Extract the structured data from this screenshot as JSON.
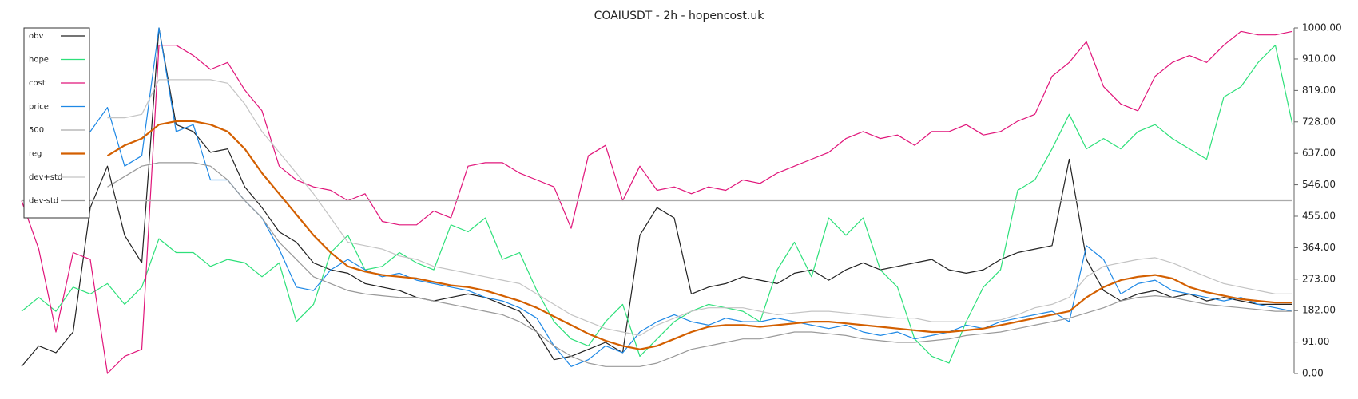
{
  "chart_data": {
    "type": "line",
    "title": "COAIUSDT - 2h - hopencost.uk",
    "legend": "upper left",
    "y_axis_side": "right",
    "ylim": [
      0,
      1000
    ],
    "yticks": [
      {
        "value": 0,
        "label": "0.00"
      },
      {
        "value": 91,
        "label": "91.00"
      },
      {
        "value": 182,
        "label": "182.00"
      },
      {
        "value": 273,
        "label": "273.00"
      },
      {
        "value": 364,
        "label": "364.00"
      },
      {
        "value": 455,
        "label": "455.00"
      },
      {
        "value": 546,
        "label": "546.00"
      },
      {
        "value": 637,
        "label": "637.00"
      },
      {
        "value": 728,
        "label": "728.00"
      },
      {
        "value": 819,
        "label": "819.00"
      },
      {
        "value": 910,
        "label": "910.00"
      },
      {
        "value": 1000,
        "label": "1000.00"
      }
    ],
    "series": [
      {
        "name": "obv",
        "color": "#222222",
        "width": 1.2,
        "values": [
          20,
          80,
          60,
          120,
          480,
          600,
          400,
          320,
          1000,
          720,
          700,
          640,
          650,
          540,
          480,
          410,
          380,
          320,
          300,
          290,
          260,
          250,
          240,
          220,
          210,
          220,
          230,
          220,
          200,
          180,
          120,
          40,
          50,
          70,
          90,
          60,
          400,
          480,
          450,
          230,
          250,
          260,
          280,
          270,
          260,
          290,
          300,
          270,
          300,
          320,
          300,
          310,
          320,
          330,
          300,
          290,
          300,
          330,
          350,
          360,
          370,
          620,
          330,
          240,
          210,
          230,
          240,
          220,
          230,
          210,
          220,
          210,
          200,
          200,
          200
        ]
      },
      {
        "name": "hope",
        "color": "#2ee07a",
        "width": 1.2,
        "values": [
          180,
          220,
          180,
          250,
          230,
          260,
          200,
          250,
          390,
          350,
          350,
          310,
          330,
          320,
          280,
          320,
          150,
          200,
          350,
          400,
          300,
          310,
          350,
          320,
          300,
          430,
          410,
          450,
          330,
          350,
          240,
          150,
          100,
          80,
          150,
          200,
          50,
          100,
          150,
          180,
          200,
          190,
          180,
          150,
          300,
          380,
          280,
          450,
          400,
          450,
          300,
          250,
          100,
          50,
          30,
          150,
          250,
          300,
          530,
          560,
          650,
          750,
          650,
          680,
          650,
          700,
          720,
          680,
          650,
          620,
          800,
          830,
          900,
          950,
          720
        ]
      },
      {
        "name": "cost",
        "color": "#e0157a",
        "width": 1.2,
        "values": [
          500,
          360,
          120,
          350,
          330,
          0,
          50,
          70,
          950,
          950,
          920,
          880,
          900,
          820,
          760,
          600,
          560,
          540,
          530,
          500,
          520,
          440,
          430,
          430,
          470,
          450,
          600,
          610,
          610,
          580,
          560,
          540,
          420,
          630,
          660,
          500,
          600,
          530,
          540,
          520,
          540,
          530,
          560,
          550,
          580,
          600,
          620,
          640,
          680,
          700,
          680,
          690,
          660,
          700,
          700,
          720,
          690,
          700,
          730,
          750,
          860,
          900,
          960,
          830,
          780,
          760,
          860,
          900,
          920,
          900,
          950,
          990,
          980,
          980,
          990
        ]
      },
      {
        "name": "price",
        "color": "#1e88e5",
        "width": 1.2,
        "values": [
          null,
          null,
          null,
          null,
          700,
          770,
          600,
          630,
          1000,
          700,
          720,
          560,
          560,
          500,
          450,
          360,
          250,
          240,
          300,
          330,
          300,
          280,
          290,
          270,
          260,
          250,
          240,
          220,
          210,
          190,
          160,
          80,
          20,
          40,
          80,
          60,
          120,
          150,
          170,
          150,
          140,
          160,
          150,
          150,
          160,
          150,
          140,
          130,
          140,
          120,
          110,
          120,
          100,
          110,
          120,
          140,
          130,
          150,
          160,
          170,
          180,
          150,
          370,
          330,
          230,
          260,
          270,
          240,
          230,
          220,
          210,
          220,
          200,
          190,
          180
        ]
      },
      {
        "name": "500",
        "color": "#aaaaaa",
        "width": 1.2,
        "values": [
          500,
          500,
          500,
          500,
          500,
          500,
          500,
          500,
          500,
          500,
          500,
          500,
          500,
          500,
          500,
          500,
          500,
          500,
          500,
          500,
          500,
          500,
          500,
          500,
          500,
          500,
          500,
          500,
          500,
          500,
          500,
          500,
          500,
          500,
          500,
          500,
          500,
          500,
          500,
          500,
          500,
          500,
          500,
          500,
          500,
          500,
          500,
          500,
          500,
          500,
          500,
          500,
          500,
          500,
          500,
          500,
          500,
          500,
          500,
          500,
          500,
          500,
          500,
          500,
          500,
          500,
          500,
          500,
          500,
          500,
          500,
          500,
          500,
          500,
          500
        ]
      },
      {
        "name": "reg",
        "color": "#d35f00",
        "width": 2.2,
        "values": [
          null,
          null,
          null,
          null,
          null,
          630,
          660,
          680,
          720,
          730,
          730,
          720,
          700,
          650,
          580,
          520,
          460,
          400,
          350,
          310,
          295,
          285,
          280,
          275,
          265,
          255,
          250,
          240,
          225,
          210,
          190,
          165,
          140,
          115,
          95,
          80,
          70,
          80,
          100,
          120,
          135,
          140,
          140,
          135,
          140,
          145,
          150,
          150,
          145,
          140,
          135,
          130,
          125,
          120,
          120,
          125,
          130,
          140,
          150,
          160,
          170,
          180,
          220,
          250,
          270,
          280,
          285,
          275,
          250,
          235,
          225,
          215,
          210,
          205,
          205
        ]
      },
      {
        "name": "dev+std",
        "color": "#c4c4c4",
        "width": 1.2,
        "values": [
          null,
          null,
          null,
          null,
          null,
          740,
          740,
          750,
          850,
          850,
          850,
          850,
          840,
          780,
          700,
          640,
          580,
          520,
          450,
          380,
          370,
          360,
          340,
          330,
          310,
          300,
          290,
          280,
          270,
          260,
          230,
          200,
          170,
          150,
          130,
          120,
          110,
          140,
          160,
          180,
          190,
          190,
          190,
          180,
          170,
          175,
          180,
          180,
          175,
          170,
          165,
          160,
          160,
          150,
          150,
          150,
          150,
          155,
          170,
          190,
          200,
          220,
          280,
          310,
          320,
          330,
          335,
          320,
          300,
          280,
          260,
          250,
          240,
          230,
          230
        ]
      },
      {
        "name": "dev-std",
        "color": "#999999",
        "width": 1.2,
        "values": [
          null,
          null,
          null,
          null,
          null,
          540,
          570,
          600,
          610,
          610,
          610,
          600,
          560,
          500,
          450,
          380,
          330,
          280,
          260,
          240,
          230,
          225,
          220,
          220,
          210,
          200,
          190,
          180,
          170,
          150,
          120,
          80,
          50,
          30,
          20,
          20,
          20,
          30,
          50,
          70,
          80,
          90,
          100,
          100,
          110,
          120,
          120,
          115,
          110,
          100,
          95,
          90,
          90,
          95,
          100,
          110,
          115,
          120,
          130,
          140,
          150,
          160,
          175,
          190,
          210,
          220,
          225,
          220,
          210,
          200,
          195,
          190,
          185,
          180,
          180
        ]
      }
    ]
  }
}
